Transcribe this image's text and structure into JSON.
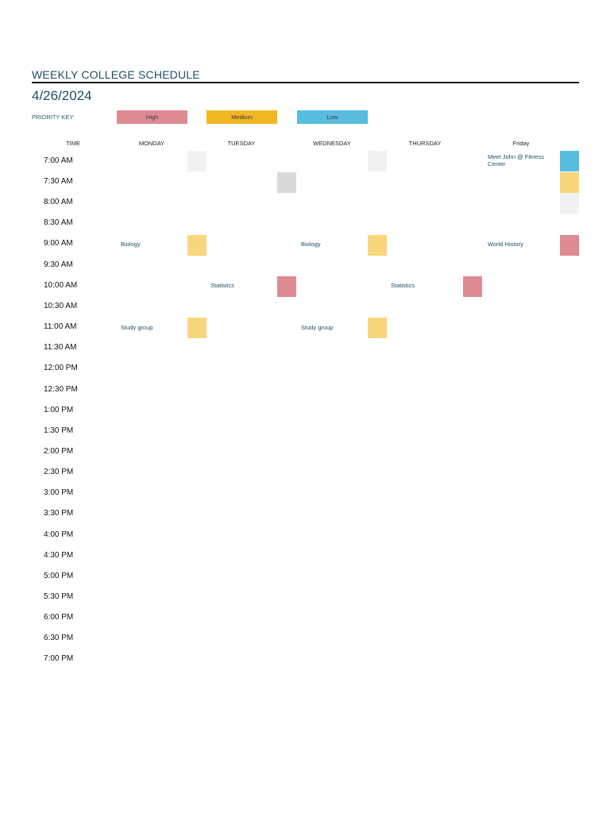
{
  "header": {
    "title": "WEEKLY COLLEGE SCHEDULE",
    "date": "4/26/2024"
  },
  "priority_key": {
    "label": "PRIORITY KEY:",
    "items": [
      {
        "label": "High",
        "color": "#df8a93"
      },
      {
        "label": "Medium",
        "color": "#f1b725"
      },
      {
        "label": "Low",
        "color": "#58bcdf"
      }
    ]
  },
  "columns": {
    "time": "TIME",
    "monday": "MONDAY",
    "tuesday": "TUESDAY",
    "wednesday": "WEDNESDAY",
    "thursday": "THURSDAY",
    "friday": "Friday"
  },
  "times": [
    "7:00 AM",
    "7:30 AM",
    "8:00 AM",
    "8:30 AM",
    "9:00 AM",
    "9:30 AM",
    "10:00 AM",
    "10:30 AM",
    "11:00 AM",
    "11:30 AM",
    "12:00 PM",
    "12:30 PM",
    "1:00 PM",
    "1:30 PM",
    "2:00 PM",
    "2:30 PM",
    "3:00 PM",
    "3:30 PM",
    "4:00 PM",
    "4:30 PM",
    "5:00 PM",
    "5:30 PM",
    "6:00 PM",
    "6:30 PM",
    "7:00 PM"
  ],
  "events": {
    "friday_700": "Meet John @ Fitness Center",
    "monday_900": "Biology",
    "wednesday_900": "Biology",
    "friday_900": "World History",
    "tuesday_1000": "Statistics",
    "thursday_1000": "Statistics",
    "monday_1100": "Study group",
    "wednesday_1100": "Study group"
  },
  "swatch_colors": {
    "high": "#df8a93",
    "medium_light": "#f8d67c",
    "low": "#58bcdf",
    "empty_light": "#f1f1f1",
    "empty_gray": "#d9d9d9"
  }
}
